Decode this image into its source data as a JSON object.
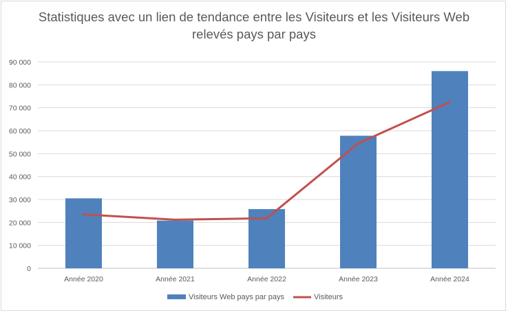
{
  "chart_data": {
    "type": "bar",
    "title_lines": [
      "Statistiques avec un lien de tendance entre les Visiteurs et les Visiteurs Web",
      "relevés pays par pays"
    ],
    "categories": [
      "Année 2020",
      "Année 2021",
      "Année 2022",
      "Année 2023",
      "Année 2024"
    ],
    "ylim": [
      0,
      90000
    ],
    "yticks": [
      0,
      10000,
      20000,
      30000,
      40000,
      50000,
      60000,
      70000,
      80000,
      90000
    ],
    "ytick_labels": [
      "0",
      "10 000",
      "20 000",
      "30 000",
      "40 000",
      "50 000",
      "60 000",
      "70 000",
      "80 000",
      "90 000"
    ],
    "grid": true,
    "legend_position": "bottom",
    "series": [
      {
        "name": "Visiteurs Web pays par pays",
        "type": "bar",
        "color": "#4f81bd",
        "values": [
          30500,
          20800,
          25800,
          57800,
          86000
        ]
      },
      {
        "name": "Visiteurs",
        "type": "line",
        "color": "#c0504d",
        "values": [
          23500,
          21200,
          21800,
          54500,
          72500
        ]
      }
    ]
  }
}
